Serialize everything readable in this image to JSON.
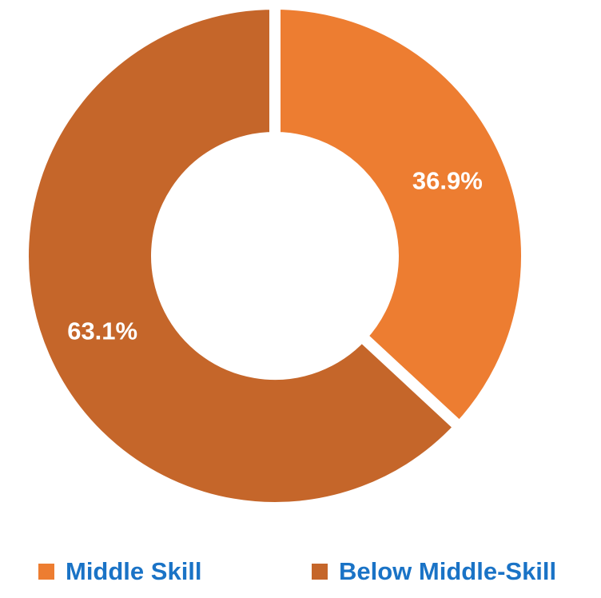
{
  "chart_data": {
    "type": "pie",
    "donut": true,
    "categories": [
      "Middle Skill",
      "Below Middle-Skill"
    ],
    "values": [
      36.9,
      63.1
    ],
    "value_labels": [
      "36.9%",
      "63.1%"
    ],
    "colors": [
      "#ED7D31",
      "#C5662A"
    ],
    "legend_placement": "bottom",
    "legend_text_color": "#1A73C6",
    "slice_separator_color": "#ffffff"
  }
}
